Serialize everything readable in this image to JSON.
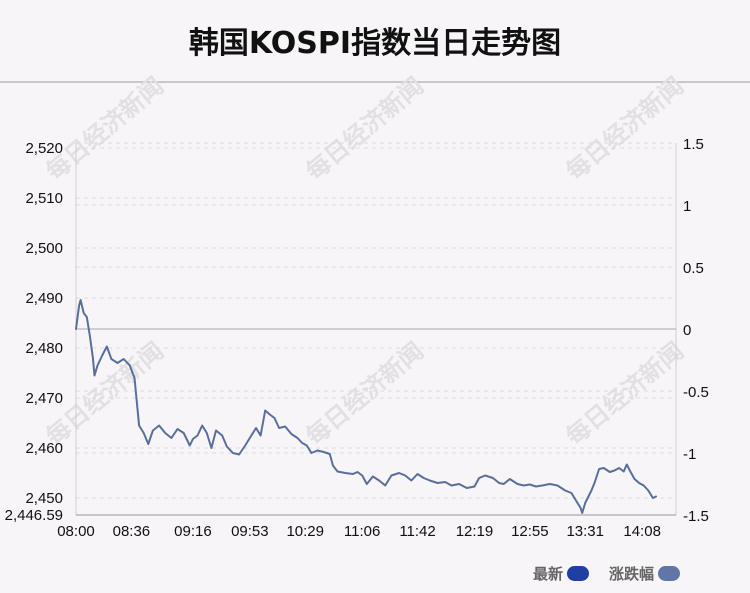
{
  "title": "韩国KOSPI指数当日走势图",
  "watermark": "每日经济新闻",
  "legend": [
    {
      "label": "最新",
      "color": "#1f3fa3"
    },
    {
      "label": "涨跌幅",
      "color": "#5f76a6"
    }
  ],
  "chart_data": {
    "type": "line",
    "x_ticks": [
      "08:00",
      "08:36",
      "09:16",
      "09:53",
      "10:29",
      "11:06",
      "11:42",
      "12:19",
      "12:55",
      "13:31",
      "14:08"
    ],
    "y_left_ticks": [
      "2,520",
      "2,510",
      "2,500",
      "2,490",
      "2,480",
      "2,470",
      "2,460",
      "2,450",
      "2,446.59"
    ],
    "y_right_ticks": [
      "1.5",
      "1",
      "0.5",
      "0",
      "-0.5",
      "-1",
      "-1.5"
    ],
    "ylim_left": [
      2446.59,
      2521
    ],
    "ylim_right": [
      -1.5,
      1.5
    ],
    "baseline": 2483.8,
    "grid": true,
    "series": [
      {
        "name": "最新",
        "color": "#5a6e9c",
        "points": [
          [
            "08:00",
            2483.8
          ],
          [
            "08:02",
            2488.5
          ],
          [
            "08:03",
            2489.6
          ],
          [
            "08:05",
            2487.0
          ],
          [
            "08:07",
            2486.2
          ],
          [
            "08:09",
            2482.5
          ],
          [
            "08:11",
            2478.0
          ],
          [
            "08:12",
            2474.5
          ],
          [
            "08:14",
            2476.5
          ],
          [
            "08:17",
            2478.5
          ],
          [
            "08:20",
            2480.3
          ],
          [
            "08:23",
            2477.8
          ],
          [
            "08:27",
            2477.0
          ],
          [
            "08:31",
            2477.8
          ],
          [
            "08:35",
            2476.5
          ],
          [
            "08:38",
            2474.0
          ],
          [
            "08:41",
            2464.5
          ],
          [
            "08:44",
            2463.0
          ],
          [
            "08:47",
            2460.8
          ],
          [
            "08:50",
            2463.5
          ],
          [
            "08:54",
            2464.5
          ],
          [
            "08:58",
            2463.0
          ],
          [
            "09:02",
            2462.0
          ],
          [
            "09:06",
            2463.8
          ],
          [
            "09:10",
            2463.0
          ],
          [
            "09:14",
            2460.5
          ],
          [
            "09:16",
            2461.8
          ],
          [
            "09:19",
            2462.5
          ],
          [
            "09:22",
            2464.5
          ],
          [
            "09:25",
            2463.0
          ],
          [
            "09:28",
            2460.0
          ],
          [
            "09:31",
            2463.5
          ],
          [
            "09:35",
            2462.5
          ],
          [
            "09:38",
            2460.3
          ],
          [
            "09:42",
            2459.0
          ],
          [
            "09:46",
            2458.7
          ],
          [
            "09:50",
            2460.5
          ],
          [
            "09:53",
            2462.0
          ],
          [
            "09:57",
            2464.0
          ],
          [
            "10:00",
            2462.5
          ],
          [
            "10:03",
            2467.5
          ],
          [
            "10:06",
            2466.7
          ],
          [
            "10:09",
            2466.0
          ],
          [
            "10:12",
            2464.0
          ],
          [
            "10:16",
            2464.3
          ],
          [
            "10:20",
            2462.8
          ],
          [
            "10:24",
            2462.0
          ],
          [
            "10:27",
            2461.0
          ],
          [
            "10:30",
            2460.5
          ],
          [
            "10:33",
            2459.0
          ],
          [
            "10:37",
            2459.5
          ],
          [
            "10:41",
            2459.2
          ],
          [
            "10:45",
            2458.8
          ],
          [
            "10:47",
            2456.5
          ],
          [
            "10:50",
            2455.3
          ],
          [
            "10:55",
            2455.0
          ],
          [
            "11:00",
            2454.8
          ],
          [
            "11:03",
            2455.2
          ],
          [
            "11:06",
            2454.5
          ],
          [
            "11:09",
            2452.8
          ],
          [
            "11:13",
            2454.3
          ],
          [
            "11:17",
            2453.5
          ],
          [
            "11:21",
            2452.5
          ],
          [
            "11:25",
            2454.5
          ],
          [
            "11:30",
            2455.0
          ],
          [
            "11:34",
            2454.5
          ],
          [
            "11:38",
            2453.5
          ],
          [
            "11:42",
            2454.8
          ],
          [
            "11:46",
            2454.0
          ],
          [
            "11:50",
            2453.5
          ],
          [
            "11:55",
            2453.0
          ],
          [
            "12:00",
            2453.2
          ],
          [
            "12:04",
            2452.5
          ],
          [
            "12:09",
            2452.8
          ],
          [
            "12:14",
            2452.0
          ],
          [
            "12:19",
            2452.3
          ],
          [
            "12:22",
            2454.0
          ],
          [
            "12:26",
            2454.5
          ],
          [
            "12:31",
            2454.0
          ],
          [
            "12:35",
            2453.0
          ],
          [
            "12:38",
            2452.8
          ],
          [
            "12:42",
            2453.8
          ],
          [
            "12:47",
            2452.8
          ],
          [
            "12:51",
            2452.5
          ],
          [
            "12:55",
            2452.7
          ],
          [
            "12:59",
            2452.3
          ],
          [
            "13:03",
            2452.5
          ],
          [
            "13:08",
            2452.8
          ],
          [
            "13:13",
            2452.5
          ],
          [
            "13:18",
            2451.5
          ],
          [
            "13:22",
            2451.0
          ],
          [
            "13:25",
            2449.5
          ],
          [
            "13:28",
            2448.0
          ],
          [
            "13:29",
            2447.0
          ],
          [
            "13:31",
            2449.0
          ],
          [
            "13:35",
            2451.5
          ],
          [
            "13:37",
            2453.0
          ],
          [
            "13:40",
            2455.8
          ],
          [
            "13:43",
            2456.0
          ],
          [
            "13:47",
            2455.2
          ],
          [
            "13:50",
            2455.5
          ],
          [
            "13:53",
            2456.0
          ],
          [
            "13:56",
            2455.3
          ],
          [
            "13:58",
            2456.7
          ],
          [
            "14:00",
            2455.5
          ],
          [
            "14:03",
            2453.8
          ],
          [
            "14:06",
            2453.0
          ],
          [
            "14:09",
            2452.5
          ],
          [
            "14:12",
            2451.5
          ],
          [
            "14:15",
            2450.0
          ],
          [
            "14:17",
            2450.3
          ]
        ]
      }
    ]
  }
}
